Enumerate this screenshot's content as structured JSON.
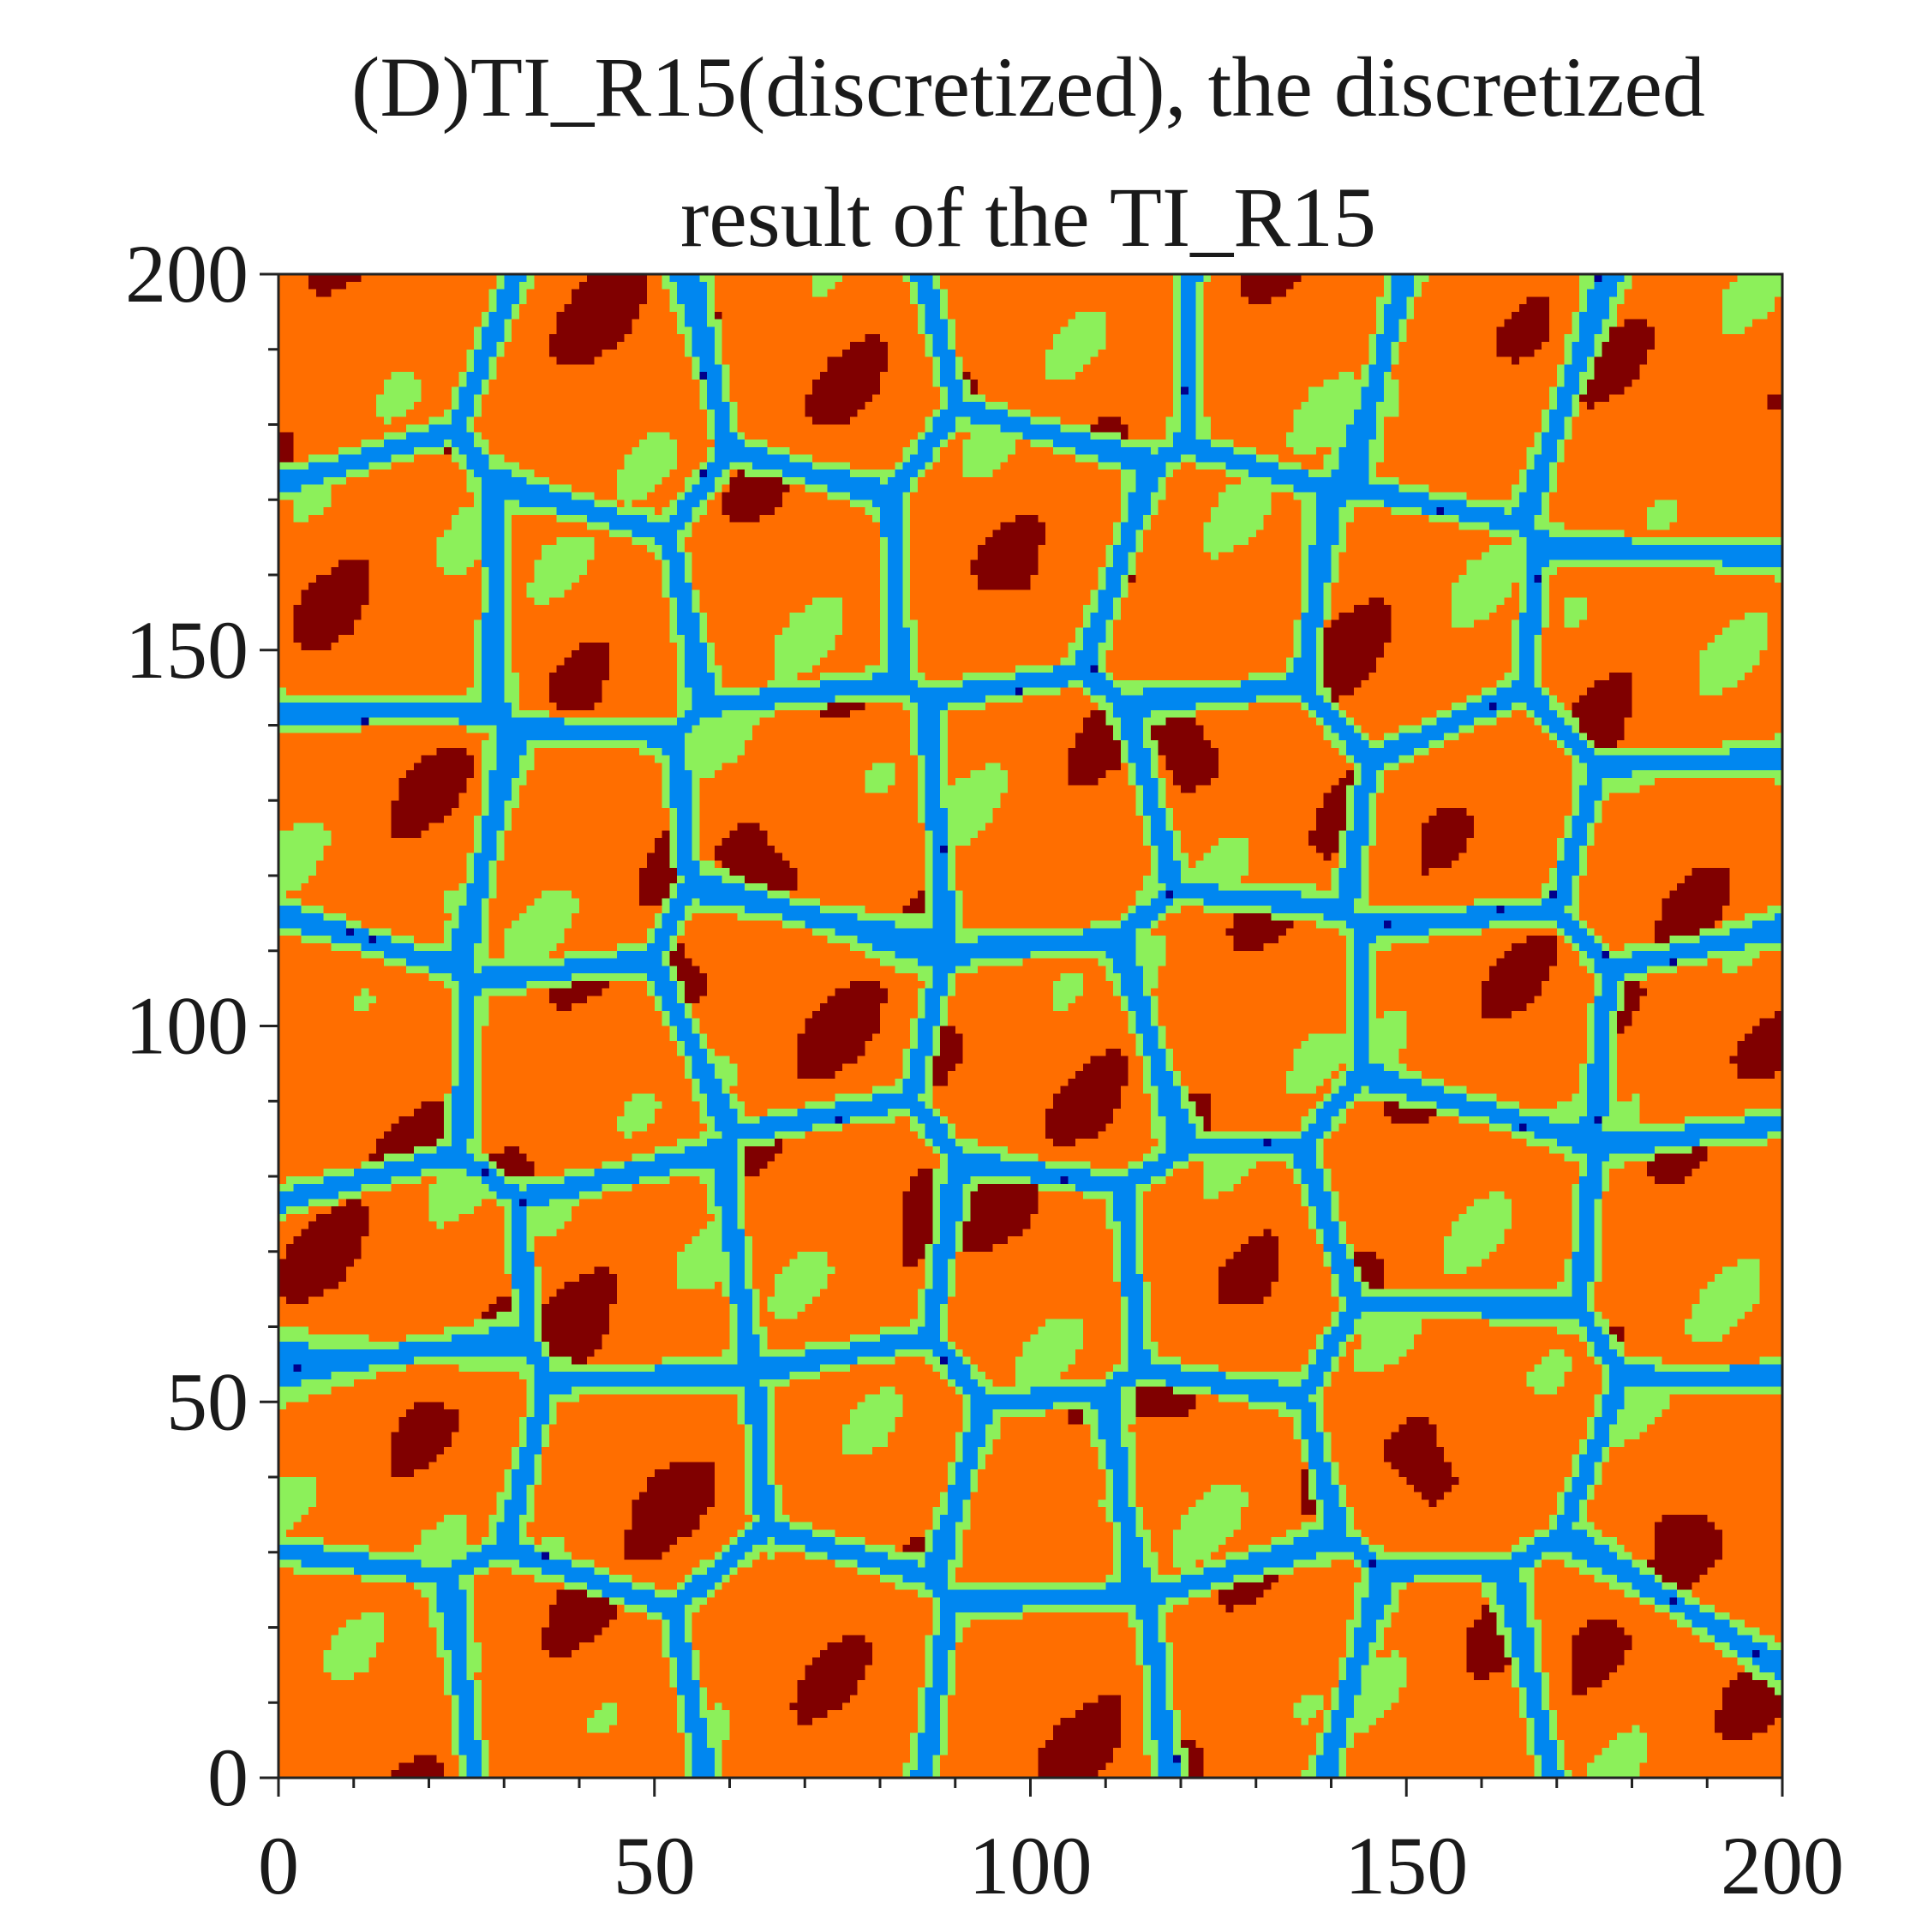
{
  "chart_data": {
    "type": "heatmap",
    "title_lines": [
      "(D)TI_R15(discretized), the discretized",
      "result of the TI_R15"
    ],
    "xlabel": "",
    "ylabel": "",
    "xlim": [
      0,
      200
    ],
    "ylim": [
      0,
      200
    ],
    "x_ticks": [
      0,
      50,
      100,
      150,
      200
    ],
    "y_ticks": [
      0,
      50,
      100,
      150,
      200
    ],
    "x_tick_labels": [
      "0",
      "50",
      "100",
      "150",
      "200"
    ],
    "y_tick_labels": [
      "0",
      "50",
      "100",
      "150",
      "200"
    ],
    "minor_tick_step": 10,
    "grid_size": 200,
    "colormap": [
      "#00008b",
      "#0087f0",
      "#8cf05a",
      "#ff6e00",
      "#800000"
    ],
    "grid": false,
    "legend": "none"
  }
}
